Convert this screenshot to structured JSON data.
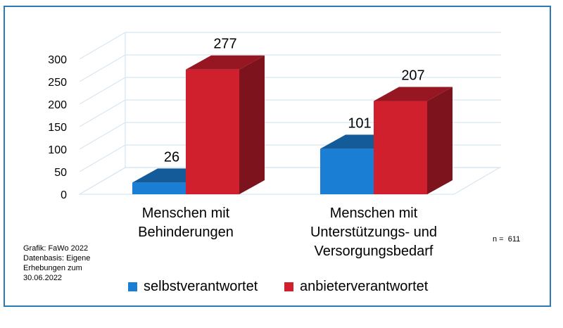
{
  "chart_data": {
    "type": "bar",
    "categories": [
      "Menschen mit\nBehinderungen",
      "Menschen mit\nUnterstützungs- und\nVersorgungsbedarf"
    ],
    "series": [
      {
        "name": "selbstverantwortet",
        "values": [
          26,
          101
        ],
        "color": "#1a7fd4"
      },
      {
        "name": "anbieterverantwortet",
        "values": [
          277,
          207
        ],
        "color": "#d0202e"
      }
    ],
    "yticks": [
      0,
      50,
      100,
      150,
      200,
      250,
      300
    ],
    "ylim": [
      0,
      300
    ],
    "grid": true,
    "legend": "bottom",
    "style": "3d-bar"
  },
  "notes": {
    "source_lines": [
      "Grafik: FaWo 2022",
      "Datenbasis: Eigene",
      "Erhebungen zum",
      "30.06.2022"
    ],
    "n_label": "n =  611"
  },
  "legend": {
    "items": [
      "selbstverantwortet",
      "anbieterverantwortet"
    ]
  }
}
